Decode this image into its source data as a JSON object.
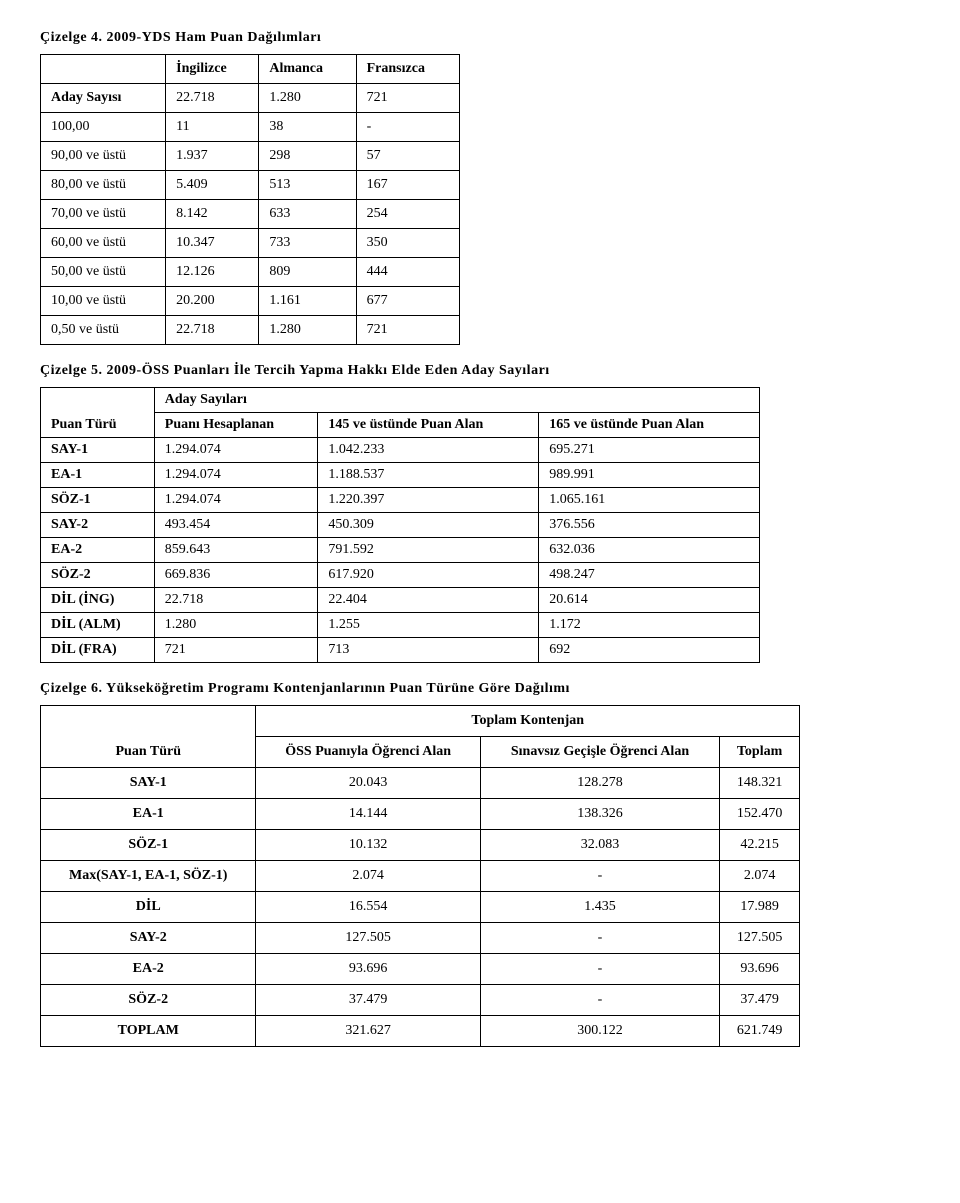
{
  "t1": {
    "caption": "Çizelge 4. 2009-YDS Ham Puan Dağılımları",
    "headers": [
      "",
      "İngilizce",
      "Almanca",
      "Fransızca"
    ],
    "rows": [
      [
        "Aday Sayısı",
        "22.718",
        "1.280",
        "721"
      ],
      [
        "100,00",
        "11",
        "38",
        "-"
      ],
      [
        "90,00 ve üstü",
        "1.937",
        "298",
        "57"
      ],
      [
        "80,00 ve üstü",
        "5.409",
        "513",
        "167"
      ],
      [
        "70,00 ve üstü",
        "8.142",
        "633",
        "254"
      ],
      [
        "60,00 ve üstü",
        "10.347",
        "733",
        "350"
      ],
      [
        "50,00 ve üstü",
        "12.126",
        "809",
        "444"
      ],
      [
        "10,00 ve üstü",
        "20.200",
        "1.161",
        "677"
      ],
      [
        "0,50 ve üstü",
        "22.718",
        "1.280",
        "721"
      ]
    ]
  },
  "t2": {
    "caption": "Çizelge 5. 2009-ÖSS Puanları İle Tercih Yapma Hakkı Elde Eden Aday Sayıları",
    "top_header": "Aday Sayıları",
    "headers": [
      "Puan Türü",
      "Puanı Hesaplanan",
      "145 ve üstünde Puan Alan",
      "165 ve üstünde Puan Alan"
    ],
    "rows": [
      [
        "SAY-1",
        "1.294.074",
        "1.042.233",
        "695.271"
      ],
      [
        "EA-1",
        "1.294.074",
        "1.188.537",
        "989.991"
      ],
      [
        "SÖZ-1",
        "1.294.074",
        "1.220.397",
        "1.065.161"
      ],
      [
        "SAY-2",
        "493.454",
        "450.309",
        "376.556"
      ],
      [
        "EA-2",
        "859.643",
        "791.592",
        "632.036"
      ],
      [
        "SÖZ-2",
        "669.836",
        "617.920",
        "498.247"
      ],
      [
        "DİL (İNG)",
        "22.718",
        "22.404",
        "20.614"
      ],
      [
        "DİL (ALM)",
        "1.280",
        "1.255",
        "1.172"
      ],
      [
        "DİL (FRA)",
        "721",
        "713",
        "692"
      ]
    ]
  },
  "t3": {
    "caption": "Çizelge 6. Yükseköğretim Programı Kontenjanlarının Puan Türüne Göre Dağılımı",
    "top_header": "Toplam Kontenjan",
    "headers": [
      "Puan Türü",
      "ÖSS Puanıyla Öğrenci Alan",
      "Sınavsız Geçişle Öğrenci Alan",
      "Toplam"
    ],
    "rows": [
      [
        "SAY-1",
        "20.043",
        "128.278",
        "148.321"
      ],
      [
        "EA-1",
        "14.144",
        "138.326",
        "152.470"
      ],
      [
        "SÖZ-1",
        "10.132",
        "32.083",
        "42.215"
      ],
      [
        "Max(SAY-1, EA-1, SÖZ-1)",
        "2.074",
        "-",
        "2.074"
      ],
      [
        "DİL",
        "16.554",
        "1.435",
        "17.989"
      ],
      [
        "SAY-2",
        "127.505",
        "-",
        "127.505"
      ],
      [
        "EA-2",
        "93.696",
        "-",
        "93.696"
      ],
      [
        "SÖZ-2",
        "37.479",
        "-",
        "37.479"
      ],
      [
        "TOPLAM",
        "321.627",
        "300.122",
        "621.749"
      ]
    ]
  }
}
